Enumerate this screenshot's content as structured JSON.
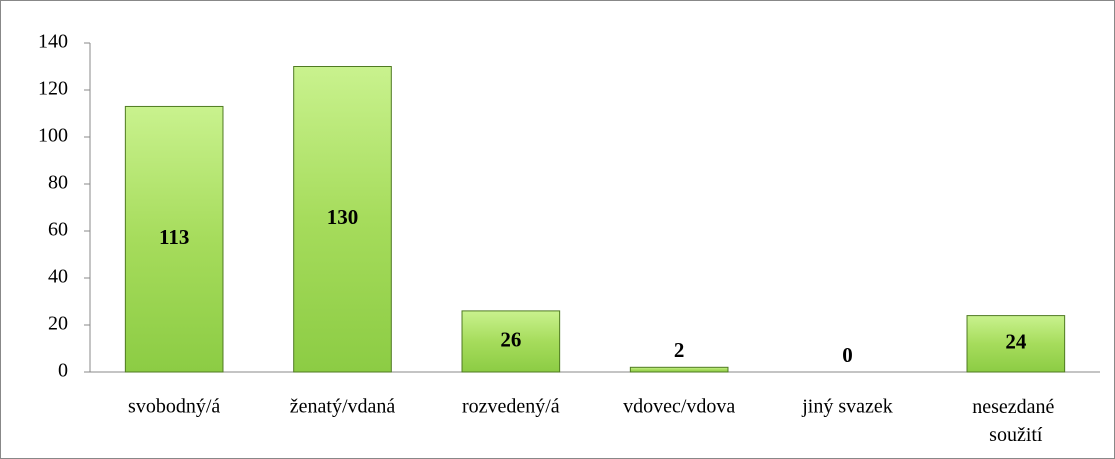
{
  "chart_data": {
    "type": "bar",
    "categories": [
      "svobodný/á",
      "ženatý/vdaná",
      "rozvedený/á",
      "vdovec/vdova",
      "jiný svazek",
      "nesezdané soužití"
    ],
    "values": [
      113,
      130,
      26,
      2,
      0,
      24
    ],
    "color": "#92d050",
    "ylim": [
      0,
      140
    ],
    "yticks": [
      0,
      20,
      40,
      60,
      80,
      100,
      120,
      140
    ],
    "grid": false
  }
}
